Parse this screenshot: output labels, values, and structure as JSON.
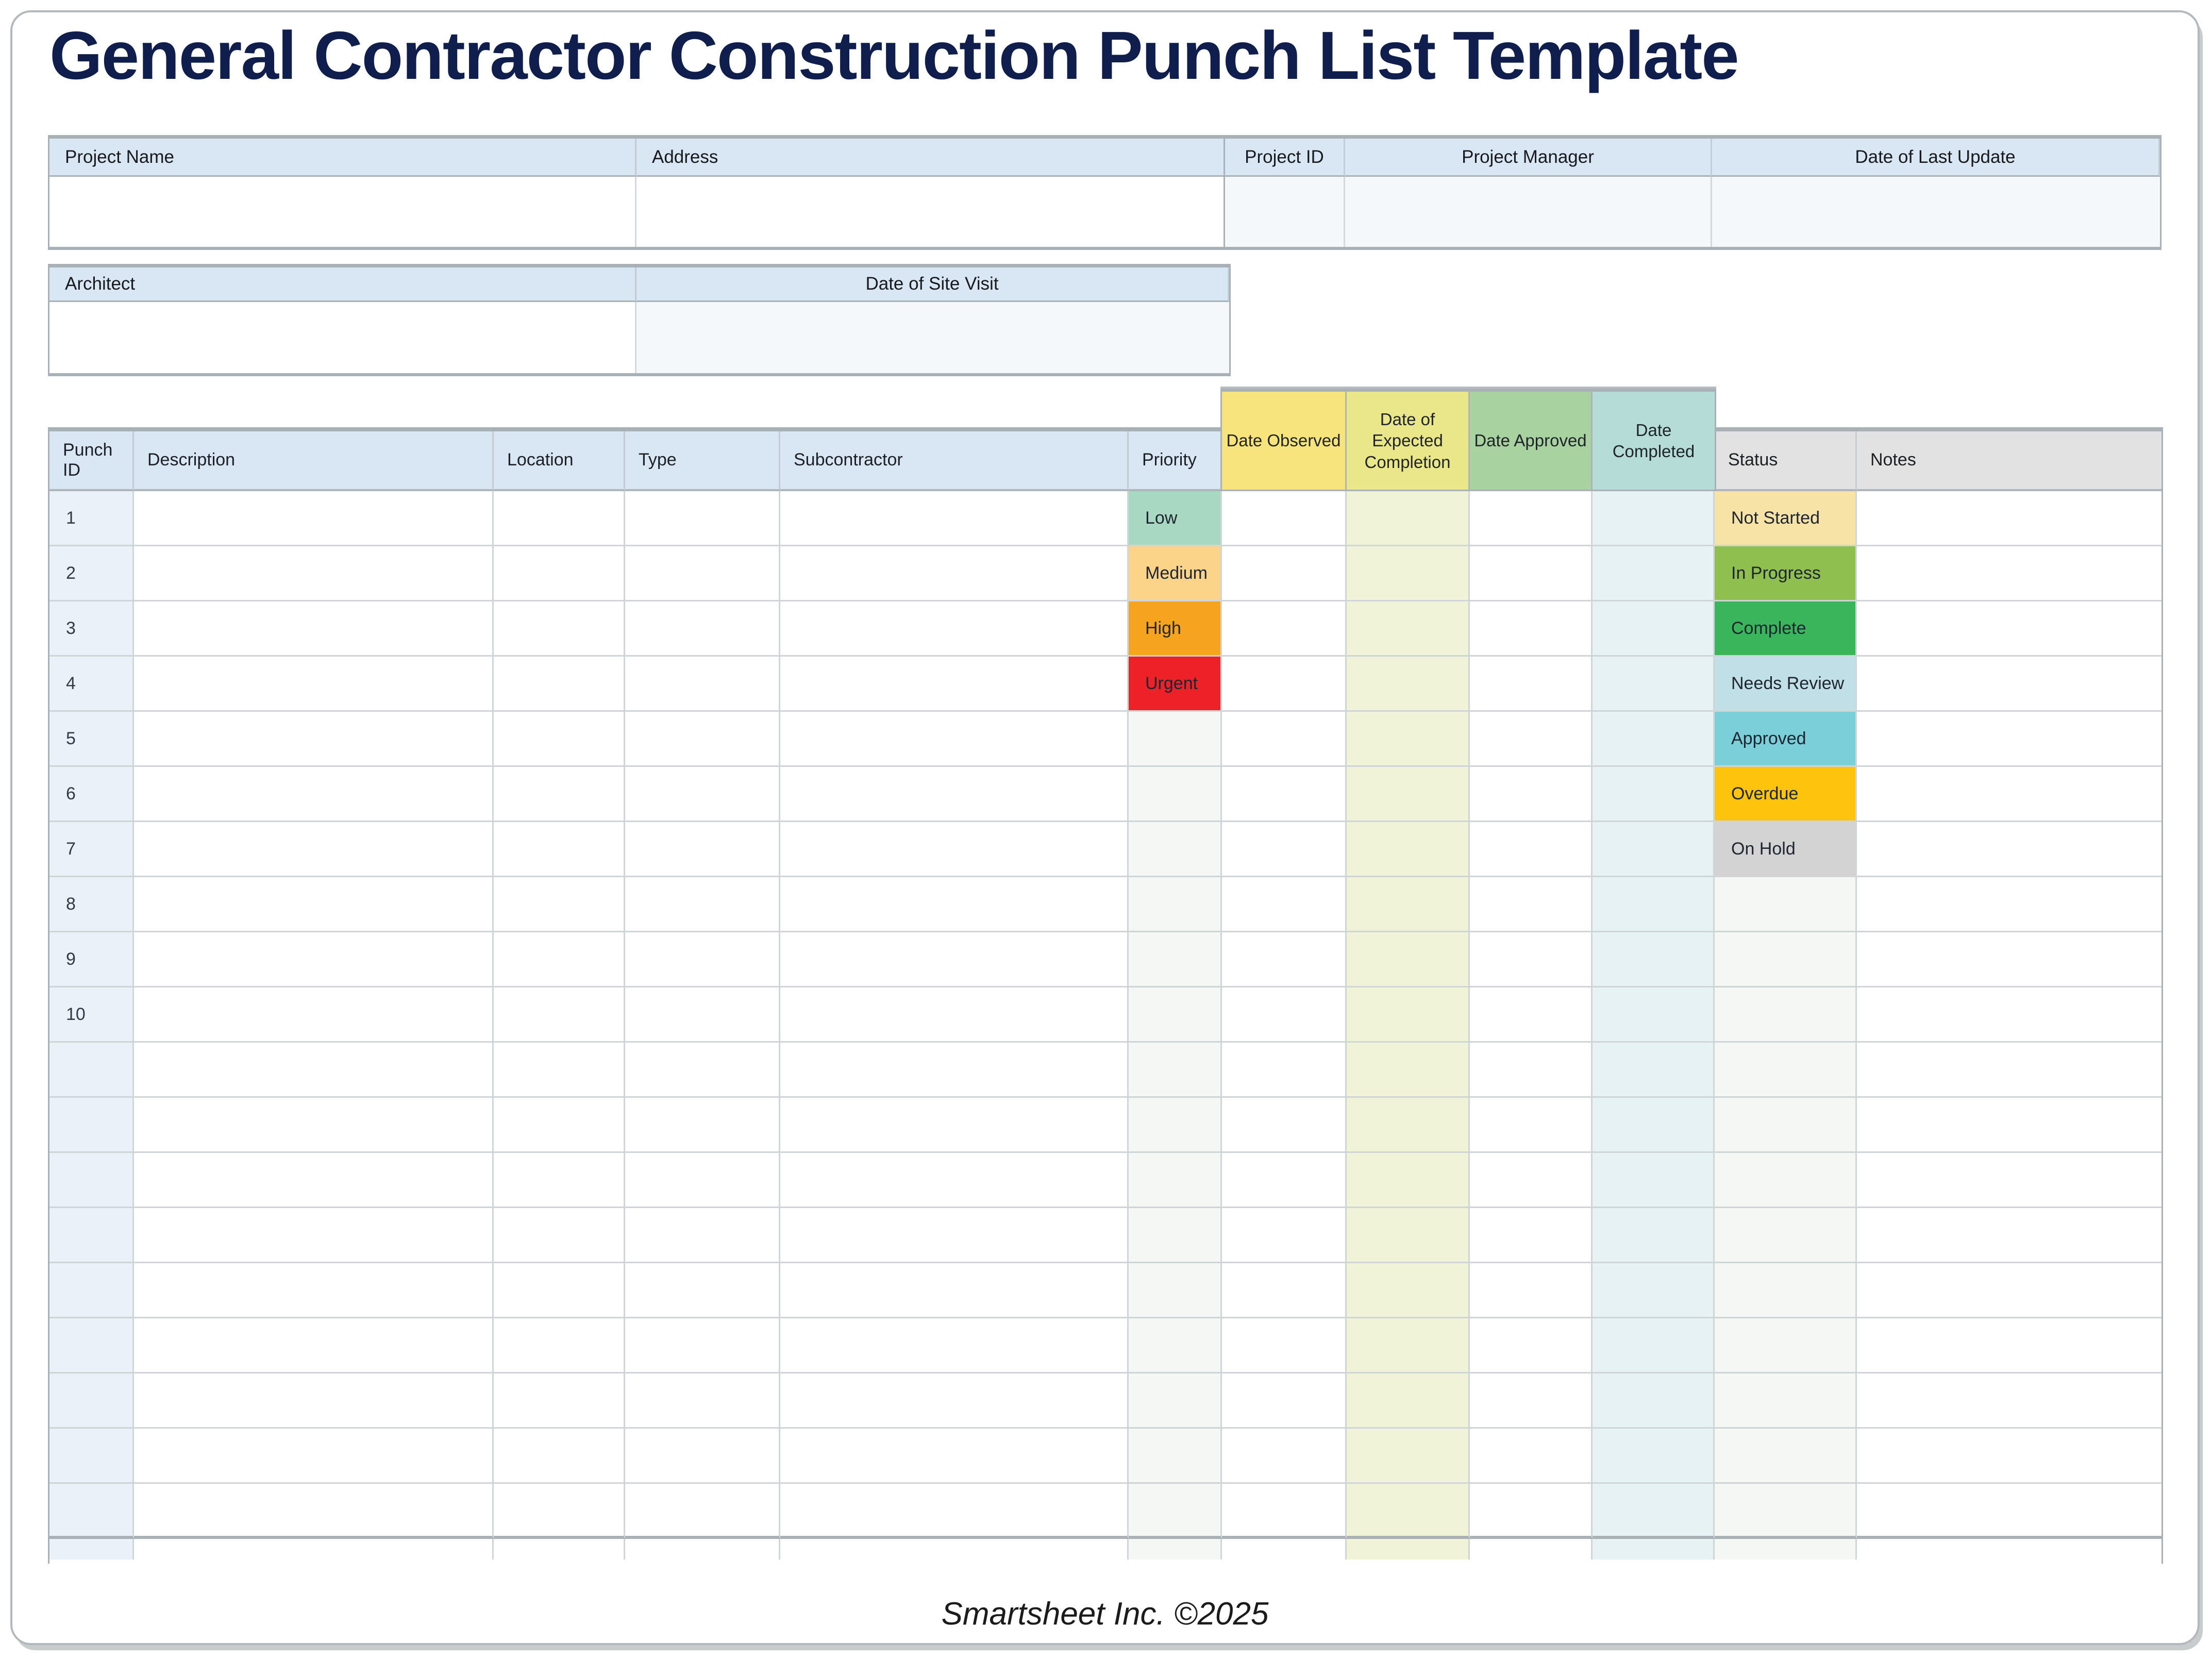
{
  "page": {
    "title": "General Contractor Construction Punch List Template",
    "footer": "Smartsheet Inc. ©2025"
  },
  "project_info": {
    "project_name_label": "Project Name",
    "address_label": "Address",
    "project_id_label": "Project ID",
    "project_manager_label": "Project Manager",
    "date_of_last_update_label": "Date of Last Update",
    "architect_label": "Architect",
    "date_of_site_visit_label": "Date of Site Visit",
    "values": {
      "project_name": "",
      "address": "",
      "project_id": "",
      "project_manager": "",
      "date_of_last_update": "",
      "architect": "",
      "date_of_site_visit": ""
    }
  },
  "punch_table": {
    "header": {
      "punch_id": "Punch ID",
      "description": "Description",
      "location": "Location",
      "type": "Type",
      "subcontractor": "Subcontractor",
      "priority": "Priority",
      "date_observed": "Date Observed",
      "date_expected_completion": "Date of Expected Completion",
      "date_approved": "Date Approved",
      "date_completed": "Date Completed",
      "status": "Status",
      "notes": "Notes"
    },
    "rows": [
      {
        "punch_id": "1",
        "priority": "Low",
        "status": "Not Started"
      },
      {
        "punch_id": "2",
        "priority": "Medium",
        "status": "In Progress"
      },
      {
        "punch_id": "3",
        "priority": "High",
        "status": "Complete"
      },
      {
        "punch_id": "4",
        "priority": "Urgent",
        "status": "Needs Review"
      },
      {
        "punch_id": "5",
        "status": "Approved"
      },
      {
        "punch_id": "6",
        "status": "Overdue"
      },
      {
        "punch_id": "7",
        "status": "On Hold"
      },
      {
        "punch_id": "8"
      },
      {
        "punch_id": "9"
      },
      {
        "punch_id": "10"
      },
      {},
      {},
      {},
      {},
      {},
      {},
      {},
      {},
      {},
      {}
    ],
    "priority_colors": {
      "Low": "#a8d8c1",
      "Medium": "#fbd489",
      "High": "#f6a41f",
      "Urgent": "#ed2127"
    },
    "status_colors": {
      "Not Started": "#f6e3a5",
      "In Progress": "#8fc04f",
      "Complete": "#3ab55c",
      "Needs Review": "#c0dfe6",
      "Approved": "#7acfd8",
      "Overdue": "#fdc30d",
      "On Hold": "#d3d3d3"
    }
  },
  "colors": {
    "title_navy": "#0f1e4d",
    "header_blue": "#d9e6f4",
    "header_gray": "#e2e2e2",
    "punch_id_column_tint": "#eaf1f9",
    "date_observed_header": "#f8e47c",
    "date_expected_completion_header": "#e9e78a",
    "date_approved_header": "#a9d2a1",
    "date_completed_header": "#b5dcd7",
    "date_expected_completion_column_tint": "#f1f3d8",
    "date_completed_column_tint": "#e7f2f5",
    "priority_status_column_tint": "#f4f7f4",
    "grid_line": "#d0d5d8",
    "outer_border": "#a9b0b6"
  }
}
